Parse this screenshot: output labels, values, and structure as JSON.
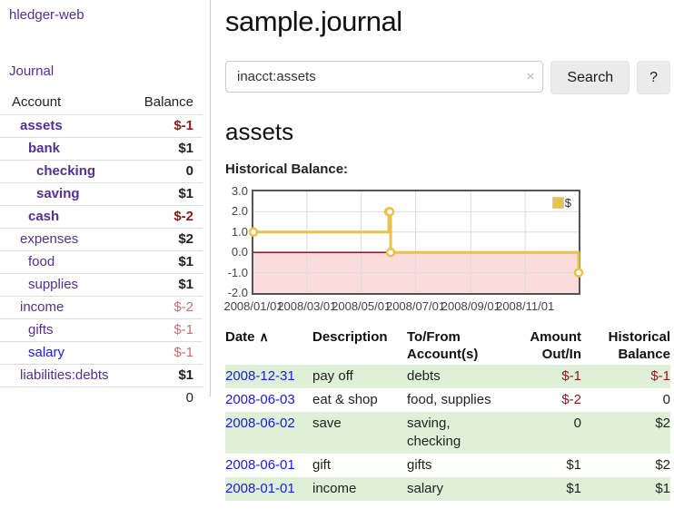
{
  "sidebar": {
    "app_title": "hledger-web",
    "nav": {
      "journal": "Journal"
    },
    "accounts_table": {
      "headers": {
        "account": "Account",
        "balance": "Balance"
      },
      "rows": [
        {
          "name": "assets",
          "balance": "$-1",
          "depth": 0,
          "bold": true,
          "neg": "strong",
          "link": "purple"
        },
        {
          "name": "bank",
          "balance": "$1",
          "depth": 1,
          "bold": true,
          "neg": null,
          "link": "purple"
        },
        {
          "name": "checking",
          "balance": "0",
          "depth": 2,
          "bold": true,
          "neg": null,
          "link": "purple"
        },
        {
          "name": "saving",
          "balance": "$1",
          "depth": 2,
          "bold": true,
          "neg": null,
          "link": "purple"
        },
        {
          "name": "cash",
          "balance": "$-2",
          "depth": 1,
          "bold": true,
          "neg": "strong",
          "link": "purple"
        },
        {
          "name": "expenses",
          "balance": "$2",
          "depth": 0,
          "bold": false,
          "neg": null,
          "link": "purple"
        },
        {
          "name": "food",
          "balance": "$1",
          "depth": 1,
          "bold": false,
          "neg": null,
          "link": "purple"
        },
        {
          "name": "supplies",
          "balance": "$1",
          "depth": 1,
          "bold": false,
          "neg": null,
          "link": "purple"
        },
        {
          "name": "income",
          "balance": "$-2",
          "depth": 0,
          "bold": false,
          "neg": "soft",
          "link": "purple"
        },
        {
          "name": "gifts",
          "balance": "$-1",
          "depth": 1,
          "bold": false,
          "neg": "soft",
          "link": "purple"
        },
        {
          "name": "salary",
          "balance": "$-1",
          "depth": 1,
          "bold": false,
          "neg": "soft",
          "link": "blue"
        },
        {
          "name": "liabilities:debts",
          "balance": "$1",
          "depth": 0,
          "bold": false,
          "neg": null,
          "link": "purple"
        }
      ],
      "total": "0"
    }
  },
  "main": {
    "title": "sample.journal",
    "search": {
      "value": "inacct:assets",
      "clear_icon": "×",
      "button_label": "Search",
      "help_label": "?"
    },
    "account_heading": "assets",
    "chart_label": "Historical Balance:",
    "register_table": {
      "headers": {
        "date": "Date",
        "sort_icon": "∧",
        "description": "Description",
        "tofrom_line1": "To/From",
        "tofrom_line2": "Account(s)",
        "amount_line1": "Amount",
        "amount_line2": "Out/In",
        "balance_line1": "Historical",
        "balance_line2": "Balance"
      },
      "rows": [
        {
          "date": "2008-12-31",
          "description": "pay off",
          "accounts": [
            "debts"
          ],
          "amount": "$-1",
          "balance": "$-1"
        },
        {
          "date": "2008-06-03",
          "description": "eat & shop",
          "accounts": [
            "food, supplies"
          ],
          "amount": "$-2",
          "balance": "0"
        },
        {
          "date": "2008-06-02",
          "description": "save",
          "accounts": [
            "saving,",
            "checking"
          ],
          "amount": "0",
          "balance": "$2"
        },
        {
          "date": "2008-06-01",
          "description": "gift",
          "accounts": [
            "gifts"
          ],
          "amount": "$1",
          "balance": "$2"
        },
        {
          "date": "2008-01-01",
          "description": "income",
          "accounts": [
            "salary"
          ],
          "amount": "$1",
          "balance": "$1"
        }
      ]
    }
  },
  "chart_data": {
    "type": "line",
    "step": true,
    "title": "Historical Balance",
    "series": [
      {
        "name": "$",
        "color": "#e8c24a",
        "points": [
          {
            "date": "2008-01-01",
            "value": 1
          },
          {
            "date": "2008-06-01",
            "value": 2
          },
          {
            "date": "2008-06-02",
            "value": 2
          },
          {
            "date": "2008-06-03",
            "value": 0
          },
          {
            "date": "2008-12-31",
            "value": -1
          }
        ]
      }
    ],
    "xlim": [
      "2008-01-01",
      "2008-12-31"
    ],
    "ylim": [
      -2,
      3
    ],
    "yticks": [
      3,
      2,
      1,
      0,
      -1,
      -2
    ],
    "xticks": [
      {
        "label": "2008/01/01",
        "date": "2008-01-01"
      },
      {
        "label": "2008/03/01",
        "date": "2008-03-01"
      },
      {
        "label": "2008/05/01",
        "date": "2008-05-01"
      },
      {
        "label": "2008/07/01",
        "date": "2008-07-01"
      },
      {
        "label": "2008/09/01",
        "date": "2008-09-01"
      },
      {
        "label": "2008/11/01",
        "date": "2008-11-01"
      }
    ],
    "grid": true,
    "legend_position": "top-right",
    "colors": {
      "negative_region": "#fadcdc",
      "zero_line": "#8b0000",
      "gridline": "#dcdcdc",
      "plot_border": "#545454",
      "marker_fill": "#ffffff"
    }
  },
  "ui_colors": {
    "link_purple": "#552e91",
    "link_blue": "#1a1ae8",
    "negative_strong": "#8b1a1a",
    "negative_soft": "#c07272",
    "stripe_green": "#dff0d8"
  }
}
